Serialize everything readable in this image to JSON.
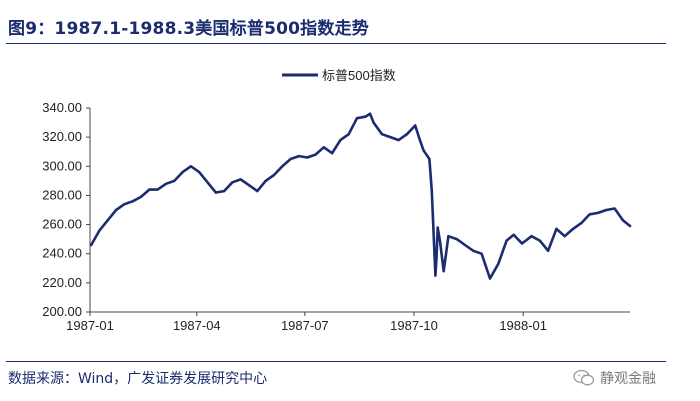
{
  "header": {
    "title": "图9：1987.1-1988.3美国标普500指数走势"
  },
  "footer": {
    "source": "数据来源：Wind，广发证券发展研究中心",
    "watermark_text": "静观金融",
    "watermark_icon": "wechat-icon"
  },
  "chart_data": {
    "type": "line",
    "title": "",
    "xlabel": "",
    "ylabel": "",
    "ylim": [
      200,
      340
    ],
    "yticks": [
      "200.00",
      "220.00",
      "240.00",
      "260.00",
      "280.00",
      "300.00",
      "320.00",
      "340.00"
    ],
    "xticks": [
      "1987-01",
      "1987-04",
      "1987-07",
      "1987-10",
      "1988-01"
    ],
    "grid": false,
    "legend": "top-center",
    "color": "#1b2c6f",
    "series": [
      {
        "name": "标普500指数",
        "x": [
          "1987-01-02",
          "1987-01-09",
          "1987-01-16",
          "1987-01-23",
          "1987-01-30",
          "1987-02-06",
          "1987-02-13",
          "1987-02-20",
          "1987-02-27",
          "1987-03-06",
          "1987-03-13",
          "1987-03-20",
          "1987-03-27",
          "1987-04-03",
          "1987-04-10",
          "1987-04-17",
          "1987-04-24",
          "1987-05-01",
          "1987-05-08",
          "1987-05-15",
          "1987-05-22",
          "1987-05-29",
          "1987-06-05",
          "1987-06-12",
          "1987-06-19",
          "1987-06-26",
          "1987-07-03",
          "1987-07-10",
          "1987-07-17",
          "1987-07-24",
          "1987-07-31",
          "1987-08-07",
          "1987-08-14",
          "1987-08-21",
          "1987-08-25",
          "1987-08-28",
          "1987-09-04",
          "1987-09-11",
          "1987-09-18",
          "1987-09-25",
          "1987-10-02",
          "1987-10-06",
          "1987-10-09",
          "1987-10-14",
          "1987-10-16",
          "1987-10-19",
          "1987-10-20",
          "1987-10-21",
          "1987-10-23",
          "1987-10-26",
          "1987-10-30",
          "1987-11-06",
          "1987-11-13",
          "1987-11-20",
          "1987-11-27",
          "1987-12-04",
          "1987-12-11",
          "1987-12-18",
          "1987-12-24",
          "1987-12-31",
          "1988-01-08",
          "1988-01-15",
          "1988-01-22",
          "1988-01-29",
          "1988-02-05",
          "1988-02-12",
          "1988-02-19",
          "1988-02-26",
          "1988-03-04",
          "1988-03-11",
          "1988-03-18",
          "1988-03-25",
          "1988-03-31"
        ],
        "values": [
          246,
          256,
          263,
          270,
          274,
          276,
          279,
          284,
          284,
          288,
          290,
          296,
          300,
          296,
          289,
          282,
          283,
          289,
          291,
          287,
          283,
          290,
          294,
          300,
          305,
          307,
          306,
          308,
          313,
          309,
          318,
          322,
          333,
          334,
          336,
          330,
          322,
          320,
          318,
          322,
          328,
          318,
          311,
          305,
          283,
          225,
          237,
          258,
          248,
          228,
          252,
          250,
          246,
          242,
          240,
          223,
          233,
          249,
          253,
          247,
          252,
          249,
          242,
          257,
          252,
          257,
          261,
          267,
          268,
          270,
          271,
          263,
          259
        ]
      }
    ]
  }
}
